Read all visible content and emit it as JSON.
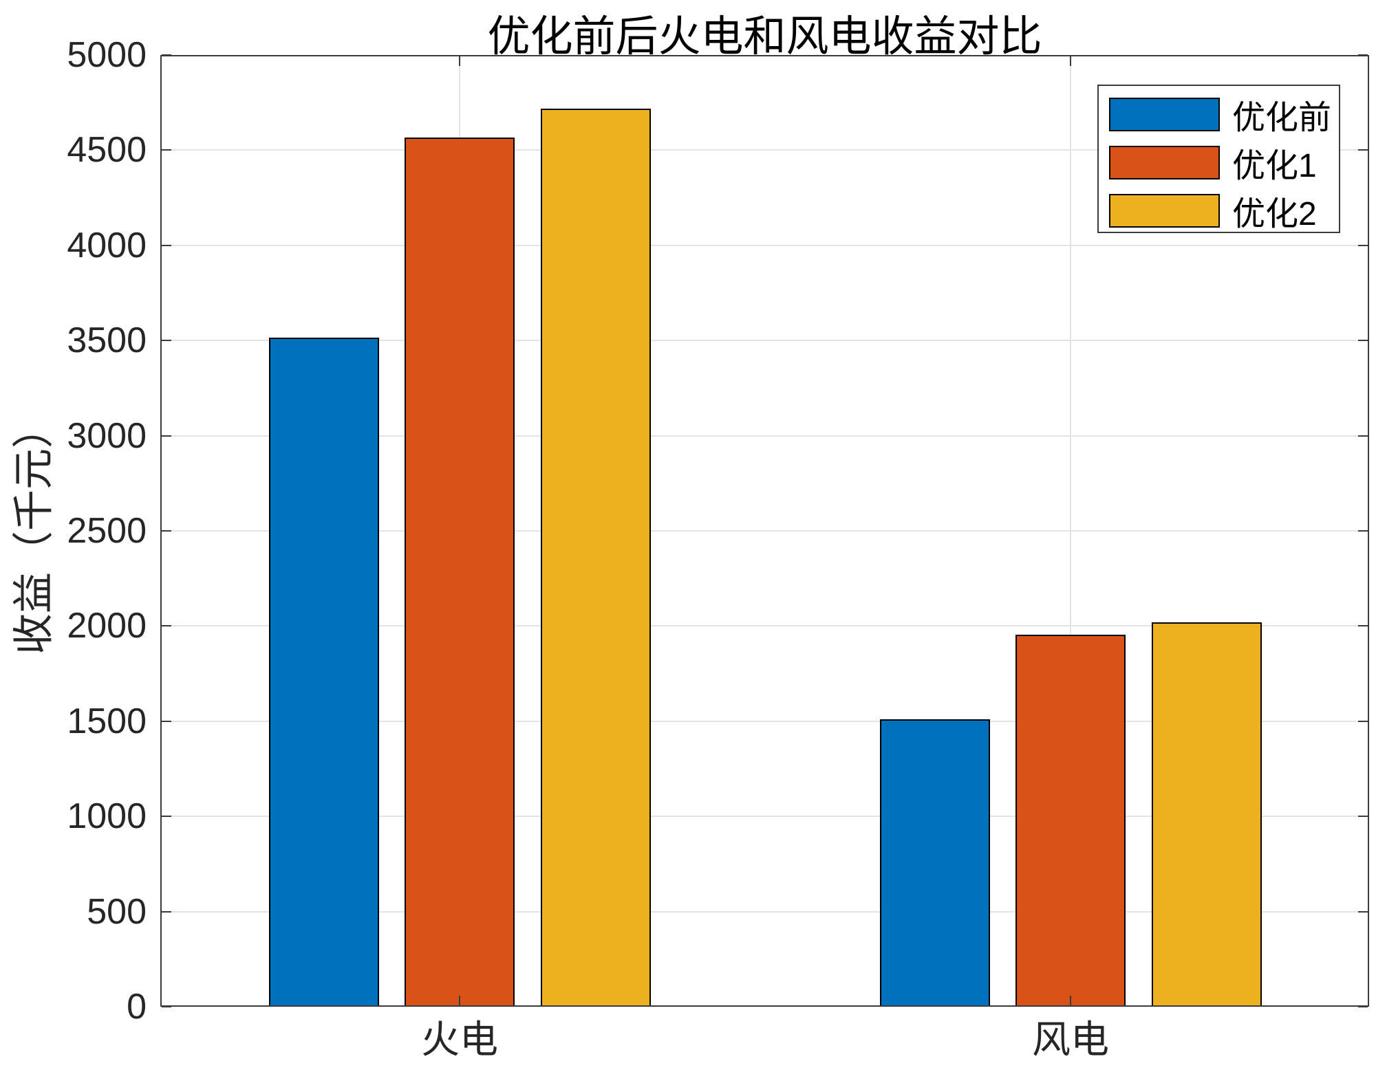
{
  "chart_data": {
    "type": "bar",
    "title": "优化前后火电和风电收益对比",
    "xlabel": "",
    "ylabel": "收益（千元）",
    "categories": [
      "火电",
      "风电"
    ],
    "series": [
      {
        "name": "优化前",
        "color": "#0072BD",
        "values": [
          3515,
          1510
        ]
      },
      {
        "name": "优化1",
        "color": "#D95319",
        "values": [
          4565,
          1955
        ]
      },
      {
        "name": "优化2",
        "color": "#EDB120",
        "values": [
          4720,
          2020
        ]
      }
    ],
    "ylim": [
      0,
      5000
    ],
    "yticks": [
      0,
      500,
      1000,
      1500,
      2000,
      2500,
      3000,
      3500,
      4000,
      4500,
      5000
    ],
    "grid": true,
    "legend_position": "top-right",
    "bar_edge_color": "#000000",
    "grid_color": "#e3e3e3",
    "axis_color": "#3b3b3b"
  }
}
